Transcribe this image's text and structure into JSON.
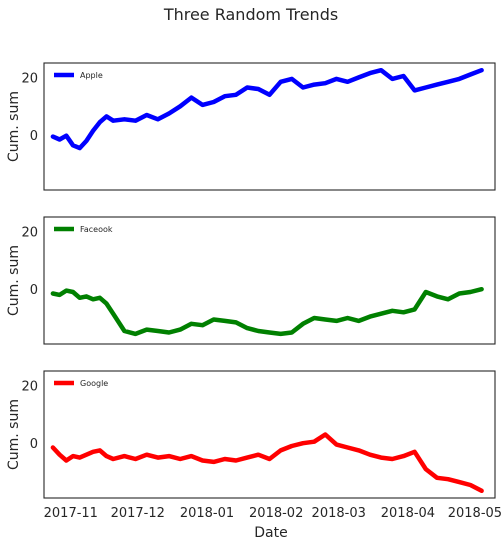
{
  "chart_data": {
    "type": "line",
    "title": "Three Random Trends",
    "xlabel": "Date",
    "x_ticks": [
      "2017-11",
      "2017-12",
      "2018-01",
      "2018-02",
      "2018-03",
      "2018-04",
      "2018-05"
    ],
    "x_range": [
      "2017-10-20",
      "2018-05-10"
    ],
    "subplots": [
      {
        "ylabel": "Cum. sum",
        "yticks": [
          0,
          20
        ],
        "ylim": [
          -19,
          25
        ],
        "legend": "Apple",
        "legend_loc": "upper left",
        "color": "#0000ff",
        "x": [
          "2017-10-24",
          "2017-10-27",
          "2017-10-30",
          "2017-11-02",
          "2017-11-05",
          "2017-11-08",
          "2017-11-11",
          "2017-11-14",
          "2017-11-17",
          "2017-11-20",
          "2017-11-25",
          "2017-11-30",
          "2017-12-05",
          "2017-12-10",
          "2017-12-15",
          "2017-12-20",
          "2017-12-25",
          "2017-12-30",
          "2018-01-04",
          "2018-01-09",
          "2018-01-14",
          "2018-01-19",
          "2018-01-24",
          "2018-01-29",
          "2018-02-03",
          "2018-02-08",
          "2018-02-13",
          "2018-02-18",
          "2018-02-23",
          "2018-02-28",
          "2018-03-05",
          "2018-03-10",
          "2018-03-15",
          "2018-03-20",
          "2018-03-25",
          "2018-03-30",
          "2018-04-04",
          "2018-04-09",
          "2018-04-14",
          "2018-04-19",
          "2018-04-24",
          "2018-04-29",
          "2018-05-04"
        ],
        "values": [
          -0.5,
          -1.5,
          -0.2,
          -3.5,
          -4.5,
          -2.0,
          1.5,
          4.5,
          6.5,
          5.0,
          5.5,
          5.0,
          7.0,
          5.5,
          7.5,
          10.0,
          13.0,
          10.5,
          11.5,
          13.5,
          14.0,
          16.5,
          16.0,
          14.0,
          18.5,
          19.5,
          16.5,
          17.5,
          18.0,
          19.5,
          18.5,
          20.0,
          21.5,
          22.5,
          19.5,
          20.5,
          15.5,
          16.5,
          17.5,
          18.5,
          19.5,
          21.0,
          22.5
        ]
      },
      {
        "ylabel": "Cum. sum",
        "yticks": [
          0,
          20
        ],
        "ylim": [
          -19,
          25
        ],
        "legend": "Faceook",
        "legend_loc": "upper left",
        "color": "#008000",
        "x": [
          "2017-10-24",
          "2017-10-27",
          "2017-10-30",
          "2017-11-02",
          "2017-11-05",
          "2017-11-08",
          "2017-11-11",
          "2017-11-14",
          "2017-11-17",
          "2017-11-20",
          "2017-11-25",
          "2017-11-30",
          "2017-12-05",
          "2017-12-10",
          "2017-12-15",
          "2017-12-20",
          "2017-12-25",
          "2017-12-30",
          "2018-01-04",
          "2018-01-09",
          "2018-01-14",
          "2018-01-19",
          "2018-01-24",
          "2018-01-29",
          "2018-02-03",
          "2018-02-08",
          "2018-02-13",
          "2018-02-18",
          "2018-02-23",
          "2018-02-28",
          "2018-03-05",
          "2018-03-10",
          "2018-03-15",
          "2018-03-20",
          "2018-03-25",
          "2018-03-30",
          "2018-04-04",
          "2018-04-09",
          "2018-04-14",
          "2018-04-19",
          "2018-04-24",
          "2018-04-29",
          "2018-05-04"
        ],
        "values": [
          -1.5,
          -2.0,
          -0.5,
          -1.0,
          -3.0,
          -2.5,
          -3.5,
          -3.0,
          -5.0,
          -8.5,
          -14.5,
          -15.5,
          -14.0,
          -14.5,
          -15.0,
          -14.0,
          -12.0,
          -12.5,
          -10.5,
          -11.0,
          -11.5,
          -13.5,
          -14.5,
          -15.0,
          -15.5,
          -15.0,
          -12.0,
          -10.0,
          -10.5,
          -11.0,
          -10.0,
          -11.0,
          -9.5,
          -8.5,
          -7.5,
          -8.0,
          -7.0,
          -1.0,
          -2.5,
          -3.5,
          -1.5,
          -1.0,
          0.0
        ]
      },
      {
        "ylabel": "Cum. sum",
        "yticks": [
          0,
          20
        ],
        "ylim": [
          -19,
          25
        ],
        "legend": "Google",
        "legend_loc": "upper left",
        "color": "#ff0000",
        "x": [
          "2017-10-24",
          "2017-10-27",
          "2017-10-30",
          "2017-11-02",
          "2017-11-05",
          "2017-11-08",
          "2017-11-11",
          "2017-11-14",
          "2017-11-17",
          "2017-11-20",
          "2017-11-25",
          "2017-11-30",
          "2017-12-05",
          "2017-12-10",
          "2017-12-15",
          "2017-12-20",
          "2017-12-25",
          "2017-12-30",
          "2018-01-04",
          "2018-01-09",
          "2018-01-14",
          "2018-01-19",
          "2018-01-24",
          "2018-01-29",
          "2018-02-03",
          "2018-02-08",
          "2018-02-13",
          "2018-02-18",
          "2018-02-23",
          "2018-02-28",
          "2018-03-05",
          "2018-03-10",
          "2018-03-15",
          "2018-03-20",
          "2018-03-25",
          "2018-03-30",
          "2018-04-04",
          "2018-04-09",
          "2018-04-14",
          "2018-04-19",
          "2018-04-24",
          "2018-04-29",
          "2018-05-04"
        ],
        "values": [
          -1.5,
          -4.0,
          -6.0,
          -4.5,
          -5.0,
          -4.0,
          -3.0,
          -2.5,
          -4.5,
          -5.5,
          -4.5,
          -5.5,
          -4.0,
          -5.0,
          -4.5,
          -5.5,
          -4.5,
          -6.0,
          -6.5,
          -5.5,
          -6.0,
          -5.0,
          -4.0,
          -5.5,
          -2.5,
          -1.0,
          0.0,
          0.5,
          3.0,
          -0.5,
          -1.5,
          -2.5,
          -4.0,
          -5.0,
          -5.5,
          -4.5,
          -3.0,
          -9.0,
          -12.0,
          -12.5,
          -13.5,
          -14.5,
          -16.5
        ]
      }
    ]
  }
}
